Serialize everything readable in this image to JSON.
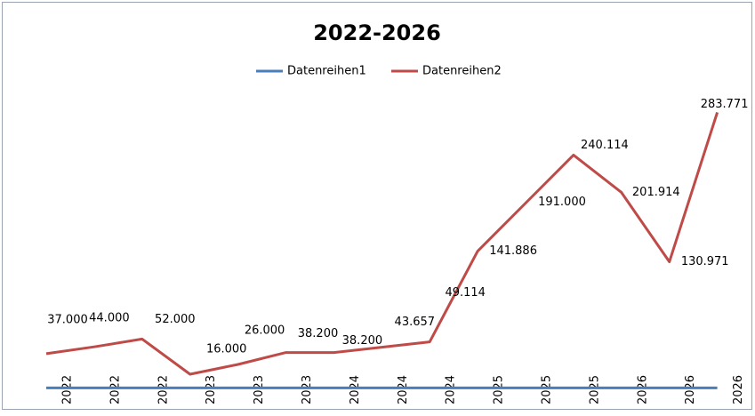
{
  "chart_data": {
    "type": "line",
    "title": "2022-2026",
    "categories": [
      "2022",
      "2022",
      "2022",
      "2023",
      "2023",
      "2023",
      "2024",
      "2024",
      "2024",
      "2025",
      "2025",
      "2025",
      "2026",
      "2026",
      "2026"
    ],
    "series": [
      {
        "name": "Datenreihen1",
        "color": "#4a7ebb",
        "values": [
          2022,
          2022,
          2022,
          2023,
          2023,
          2023,
          2024,
          2024,
          2024,
          2025,
          2025,
          2025,
          2026,
          2026,
          2026
        ]
      },
      {
        "name": "Datenreihen2",
        "color": "#be4b48",
        "values": [
          37000,
          44000,
          52000,
          16000,
          26000,
          38200,
          38200,
          43657,
          49114,
          141886,
          191000,
          240114,
          201914,
          130971,
          283771
        ],
        "value_labels": [
          "37.000",
          "44.000",
          "52.000",
          "16.000",
          "26.000",
          "38.200",
          "38.200",
          "43.657",
          "49.114",
          "141.886",
          "191.000",
          "240.114",
          "201.914",
          "130.971",
          "283.771"
        ]
      }
    ],
    "ylim": [
      0,
      300000
    ],
    "legend": "top"
  }
}
